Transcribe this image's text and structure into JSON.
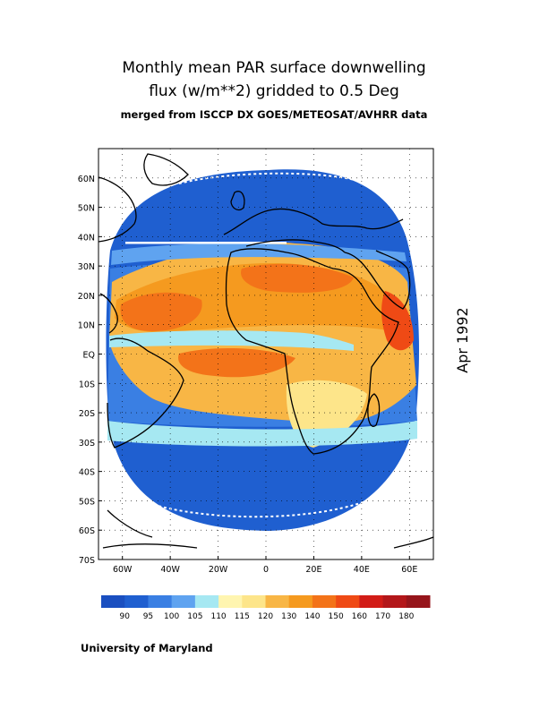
{
  "header": {
    "title_line1": "Monthly mean PAR surface downwelling",
    "title_line2": "flux (w/m**2) gridded to 0.5 Deg",
    "subtitle": "merged from ISCCP DX GOES/METEOSAT/AVHRR data"
  },
  "date_label": "Apr 1992",
  "footer": "University of Maryland",
  "map": {
    "lat_labels": [
      "60N",
      "50N",
      "40N",
      "30N",
      "20N",
      "10N",
      "EQ",
      "10S",
      "20S",
      "30S",
      "40S",
      "50S",
      "60S",
      "70S"
    ],
    "lon_labels": [
      "60W",
      "40W",
      "20W",
      "0",
      "20E",
      "40E",
      "60E"
    ],
    "lat_range": [
      -70,
      70
    ],
    "lon_range": [
      -70,
      70
    ]
  },
  "colorbar": {
    "labels": [
      "90",
      "95",
      "100",
      "105",
      "110",
      "115",
      "120",
      "130",
      "140",
      "150",
      "160",
      "170",
      "180"
    ],
    "colors": [
      "#1f5fd0",
      "#3a7fe3",
      "#5fa3f0",
      "#a6e8f2",
      "#fff5b0",
      "#fde58a",
      "#f8b645",
      "#f59a1f",
      "#f37319",
      "#ef4a15",
      "#d21c17",
      "#b3171a",
      "#96151b"
    ]
  }
}
